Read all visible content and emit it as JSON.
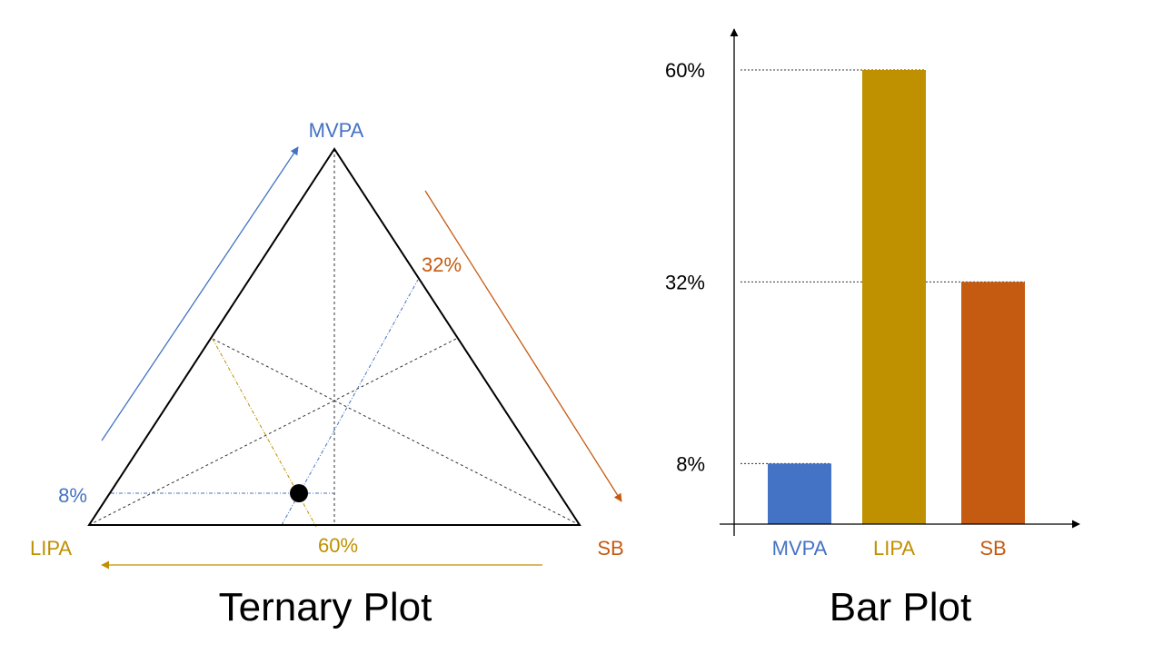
{
  "colors": {
    "mvpa": "#4472C4",
    "lipa": "#BF9000",
    "sb": "#C55A11",
    "text": "#000000"
  },
  "ternary": {
    "title": "Ternary Plot",
    "vertices": {
      "top": "MVPA",
      "left": "LIPA",
      "right": "SB"
    },
    "value_labels": {
      "mvpa": "8%",
      "lipa": "60%",
      "sb": "32%"
    }
  },
  "bar": {
    "title": "Bar Plot",
    "y_tick_labels": [
      "8%",
      "32%",
      "60%"
    ]
  },
  "chart_data": [
    {
      "type": "ternary",
      "title": "Ternary Plot",
      "axes": [
        "MVPA",
        "LIPA",
        "SB"
      ],
      "point": {
        "MVPA": 8,
        "LIPA": 60,
        "SB": 32
      },
      "units": "%"
    },
    {
      "type": "bar",
      "title": "Bar Plot",
      "categories": [
        "MVPA",
        "LIPA",
        "SB"
      ],
      "values": [
        8,
        60,
        32
      ],
      "y_ticks": [
        8,
        32,
        60
      ],
      "units": "%",
      "grid": false
    }
  ]
}
